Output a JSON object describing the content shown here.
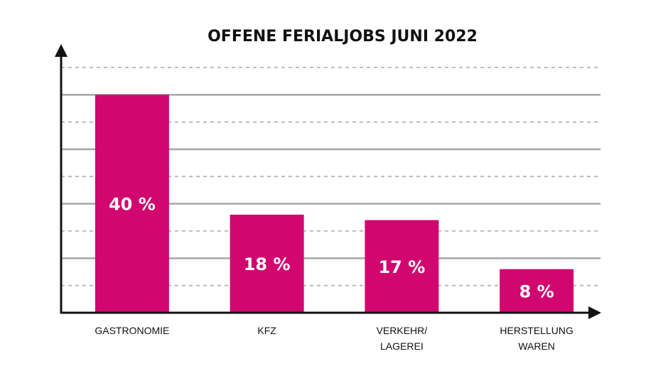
{
  "chart_data": {
    "type": "bar",
    "title": "OFFENE FERIALJOBS JUNI 2022",
    "categories": [
      [
        "GASTRONOMIE"
      ],
      [
        "KFZ"
      ],
      [
        "VERKEHR/",
        "LAGEREI"
      ],
      [
        "HERSTELLUNG",
        "WAREN"
      ]
    ],
    "values": [
      40,
      18,
      17,
      8
    ],
    "value_labels": [
      "40 %",
      "18 %",
      "17 %",
      "8 %"
    ],
    "unit": "%",
    "ylim": [
      0,
      45
    ],
    "grid": true,
    "xlabel": "",
    "ylabel": "",
    "colors": {
      "bar": "#d1076f",
      "axis": "#111111",
      "grid_solid": "#a6a6a6",
      "grid_dashed": "#b5b5b5",
      "bar_label": "#ffffff"
    }
  }
}
